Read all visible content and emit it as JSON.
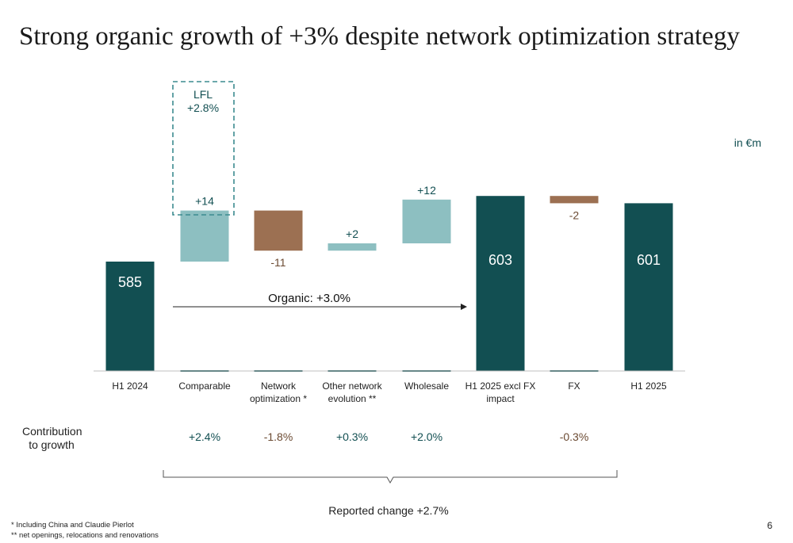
{
  "page": {
    "title": "Strong organic growth of +3% despite network optimization strategy",
    "unit": "in €m",
    "contribution_label": "Contribution to growth",
    "reported_change": "Reported change +2.7%",
    "organic_label": "Organic: +3.0%",
    "lfl_label": "LFL\n+2.8%",
    "footnote1": "* Including China and Claudie Pierlot",
    "footnote2": "** net openings, relocations and renovations",
    "page_number": "6"
  },
  "colors": {
    "total": "#124f52",
    "increase": "#8dbfc1",
    "decrease": "#9c7052",
    "label_dark": "#124f52",
    "label_neg": "#6b4a32"
  },
  "chart_data": {
    "type": "bar",
    "subtype": "waterfall",
    "title": "Strong organic growth of +3% despite network optimization strategy",
    "unit": "in €m",
    "categories": [
      "H1 2024",
      "Comparable",
      "Network\noptimization  *",
      "Other network\nevolution  **",
      "Wholesale",
      "H1 2025 excl FX\nimpact",
      "FX",
      "H1 2025"
    ],
    "values": [
      585,
      14,
      -11,
      2,
      12,
      603,
      -2,
      601
    ],
    "kinds": [
      "total",
      "increase",
      "decrease",
      "increase",
      "increase",
      "total",
      "decrease",
      "total"
    ],
    "value_labels": [
      "585",
      "+14",
      "-11",
      "+2",
      "+12",
      "603",
      "-2",
      "601"
    ],
    "contribution_to_growth": [
      "",
      "+2.4%",
      "-1.8%",
      "+0.3%",
      "+2.0%",
      "",
      "-0.3%",
      ""
    ],
    "ylim": [
      555,
      606
    ]
  }
}
